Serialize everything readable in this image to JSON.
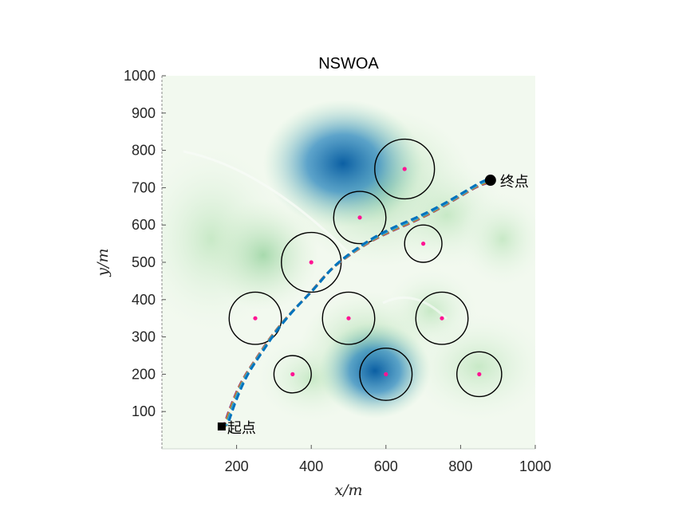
{
  "chart_data": {
    "type": "scatter",
    "title": "NSWOA",
    "xlabel": "x/m",
    "ylabel": "y/m",
    "xlim": [
      0,
      1000
    ],
    "ylim": [
      0,
      1000
    ],
    "xticks": [
      "200",
      "400",
      "600",
      "800",
      "1000"
    ],
    "yticks": [
      "100",
      "200",
      "300",
      "400",
      "500",
      "600",
      "700",
      "800",
      "900",
      "1000"
    ],
    "background": "terrain heatmap (green/blue)",
    "start": {
      "label": "起点",
      "x": 160,
      "y": 60
    },
    "goal": {
      "label": "终点",
      "x": 880,
      "y": 720
    },
    "obstacles": [
      {
        "x": 650,
        "y": 750,
        "r": 80
      },
      {
        "x": 530,
        "y": 620,
        "r": 70
      },
      {
        "x": 700,
        "y": 550,
        "r": 50
      },
      {
        "x": 400,
        "y": 500,
        "r": 80
      },
      {
        "x": 250,
        "y": 350,
        "r": 70
      },
      {
        "x": 500,
        "y": 350,
        "r": 70
      },
      {
        "x": 750,
        "y": 350,
        "r": 70
      },
      {
        "x": 350,
        "y": 200,
        "r": 50
      },
      {
        "x": 600,
        "y": 200,
        "r": 70
      },
      {
        "x": 850,
        "y": 200,
        "r": 60
      }
    ],
    "path": {
      "x": [
        170,
        190,
        220,
        260,
        300,
        350,
        400,
        450,
        500,
        560,
        620,
        680,
        740,
        800,
        850,
        880
      ],
      "y": [
        60,
        120,
        190,
        250,
        310,
        370,
        420,
        480,
        520,
        560,
        590,
        615,
        645,
        680,
        710,
        720
      ]
    },
    "path_colors": [
      "#7b2d8e",
      "#e07b2f",
      "#b5a12a",
      "#2f7fbf",
      "#4dbbd5",
      "#0072bd"
    ],
    "obstacle_center_color": "#ff1493"
  }
}
